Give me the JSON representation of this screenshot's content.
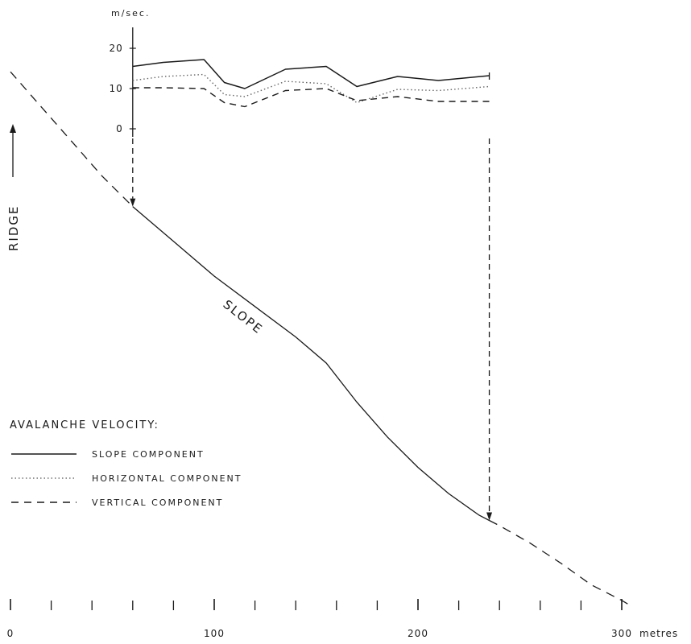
{
  "chart_data": {
    "type": "line",
    "title": "",
    "velocity_unit_label": "m/sec.",
    "ridge_label": "RIDGE",
    "slope_label": "SLOPE",
    "legend": {
      "title": "AVALANCHE VELOCITY:",
      "placement": "left",
      "entries": [
        {
          "name": "SLOPE COMPONENT",
          "style": "solid"
        },
        {
          "name": "HORIZONTAL COMPONENT",
          "style": "dotted"
        },
        {
          "name": "VERTICAL COMPONENT",
          "style": "dashed"
        }
      ]
    },
    "x_axis": {
      "unit_label": "metres",
      "ticks": [
        0,
        100,
        200,
        300
      ],
      "minor_step": 20,
      "range": [
        0,
        310
      ]
    },
    "velocity_axis": {
      "ticks": [
        0,
        10,
        20
      ],
      "range": [
        -2,
        25
      ],
      "tick_labels": [
        "0",
        "10",
        "20"
      ]
    },
    "series": [
      {
        "name": "SLOPE COMPONENT",
        "style": "solid",
        "x": [
          60,
          75,
          95,
          105,
          115,
          135,
          155,
          170,
          190,
          210,
          235
        ],
        "y": [
          15.5,
          16.5,
          17.2,
          11.5,
          10,
          14.8,
          15.5,
          10.5,
          13,
          12,
          13.2
        ]
      },
      {
        "name": "HORIZONTAL COMPONENT",
        "style": "dotted",
        "x": [
          60,
          75,
          95,
          105,
          115,
          135,
          155,
          170,
          190,
          210,
          235
        ],
        "y": [
          12,
          13,
          13.5,
          8.5,
          8,
          11.8,
          11.2,
          6.5,
          9.8,
          9.5,
          10.5
        ]
      },
      {
        "name": "VERTICAL COMPONENT",
        "style": "dashed",
        "x": [
          60,
          75,
          95,
          105,
          115,
          135,
          155,
          170,
          190,
          210,
          235
        ],
        "y": [
          10.2,
          10.2,
          10,
          6.5,
          5.5,
          9.5,
          10,
          7,
          8,
          6.8,
          6.8
        ]
      }
    ],
    "ground_profile": {
      "x": [
        0,
        15,
        30,
        45,
        60,
        80,
        100,
        120,
        140,
        155,
        170,
        185,
        200,
        215,
        230,
        240,
        255,
        270,
        285,
        300,
        305
      ],
      "elev": [
        610,
        570,
        530,
        490,
        455,
        415,
        375,
        340,
        305,
        275,
        230,
        190,
        155,
        125,
        100,
        88,
        68,
        45,
        20,
        2,
        -5
      ],
      "avalanche_start_x": 60,
      "avalanche_end_x": 235
    }
  }
}
